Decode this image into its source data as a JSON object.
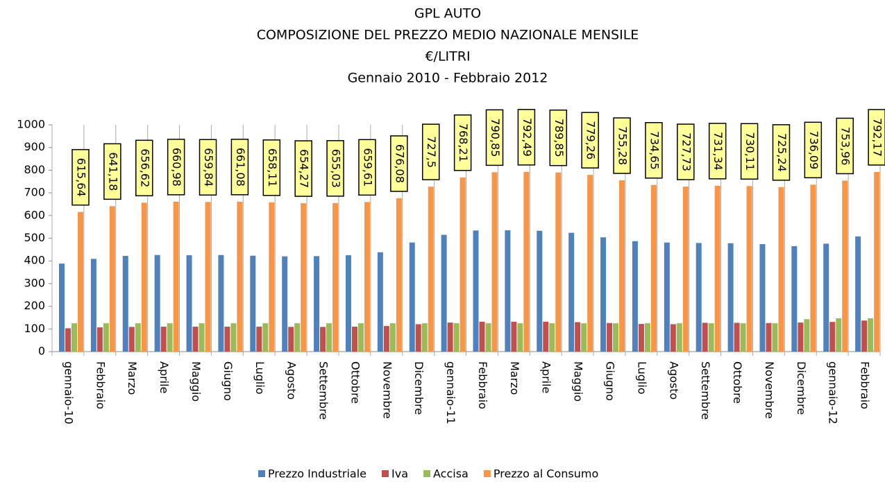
{
  "chart_data": {
    "type": "bar",
    "title_lines": [
      "GPL AUTO",
      "COMPOSIZIONE DEL PREZZO MEDIO  NAZIONALE MENSILE",
      "€/LITRI",
      "Gennaio 2010 - Febbraio 2012"
    ],
    "categories": [
      "gennaio-10",
      "Febbraio",
      "Marzo",
      "Aprile",
      "Maggio",
      "Giugno",
      "Luglio",
      "Agosto",
      "Settembre",
      "Ottobre",
      "Novembre",
      "Dicembre",
      "gennaio-11",
      "Febbraio",
      "Marzo",
      "Aprile",
      "Maggio",
      "Giugno",
      "Luglio",
      "Agosto",
      "Settembre",
      "Ottobre",
      "Novembre",
      "Dicembre",
      "gennaio-12",
      "Febbraio"
    ],
    "series": [
      {
        "name": "Prezzo Industriale",
        "color": "#4f81bd",
        "values": [
          388,
          409,
          422,
          426,
          425,
          426,
          423,
          420,
          421,
          425,
          438,
          481,
          515,
          534,
          535,
          533,
          524,
          504,
          487,
          481,
          479,
          478,
          474,
          465,
          476,
          508
        ]
      },
      {
        "name": "Iva",
        "color": "#c0504d",
        "values": [
          103,
          107,
          109,
          110,
          110,
          110,
          110,
          109,
          109,
          110,
          113,
          121,
          128,
          132,
          132,
          132,
          130,
          126,
          122,
          121,
          127,
          127,
          126,
          128,
          131,
          137
        ]
      },
      {
        "name": "Accisa",
        "color": "#9bbb59",
        "values": [
          125,
          125,
          125,
          125,
          125,
          125,
          125,
          125,
          125,
          125,
          125,
          125,
          125,
          125,
          125,
          125,
          125,
          125,
          125,
          125,
          125,
          125,
          125,
          143,
          147,
          147
        ]
      },
      {
        "name": "Prezzo al Consumo",
        "color": "#f79646",
        "values": [
          615.64,
          641.18,
          656.62,
          660.98,
          659.84,
          661.08,
          658.11,
          654.27,
          655.03,
          659.61,
          676.08,
          727.5,
          768.21,
          790.85,
          792.49,
          789.85,
          779.26,
          755.28,
          734.65,
          727.73,
          731.34,
          730.11,
          725.24,
          736.09,
          753.96,
          792.17
        ],
        "value_labels": [
          "615,64",
          "641,18",
          "656,62",
          "660,98",
          "659,84",
          "661,08",
          "658,11",
          "654,27",
          "655,03",
          "659,61",
          "676,08",
          "727,5",
          "768,21",
          "790,85",
          "792,49",
          "789,85",
          "779,26",
          "755,28",
          "734,65",
          "727,73",
          "731,34",
          "730,11",
          "725,24",
          "736,09",
          "753,96",
          "792,17"
        ]
      }
    ],
    "ylim": [
      0,
      1000
    ],
    "yticks": [
      0,
      100,
      200,
      300,
      400,
      500,
      600,
      700,
      800,
      900,
      1000
    ],
    "grid": false,
    "legend": "bottom"
  }
}
